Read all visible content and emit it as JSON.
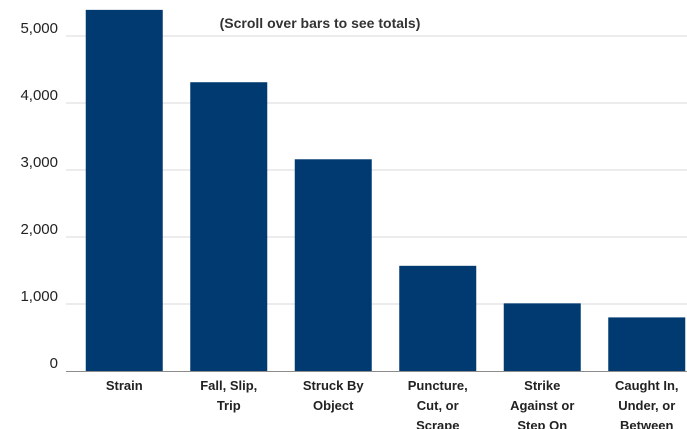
{
  "chart_data": {
    "type": "bar",
    "title": "",
    "annotation": "(Scroll over bars to see totals)",
    "categories": [
      [
        "Strain"
      ],
      [
        "Fall, Slip,",
        "Trip"
      ],
      [
        "Struck By",
        "Object"
      ],
      [
        "Puncture,",
        "Cut, or",
        "Scrape"
      ],
      [
        "Strike",
        "Against or",
        "Step On"
      ],
      [
        "Caught In,",
        "Under, or",
        "Between"
      ]
    ],
    "values": [
      5390,
      4310,
      3160,
      1570,
      1010,
      800
    ],
    "yticks": [
      "0",
      "1,000",
      "2,000",
      "3,000",
      "4,000",
      "5,000"
    ],
    "ylim": [
      0,
      5400
    ],
    "grid": true,
    "bar_color": "#003a70"
  }
}
